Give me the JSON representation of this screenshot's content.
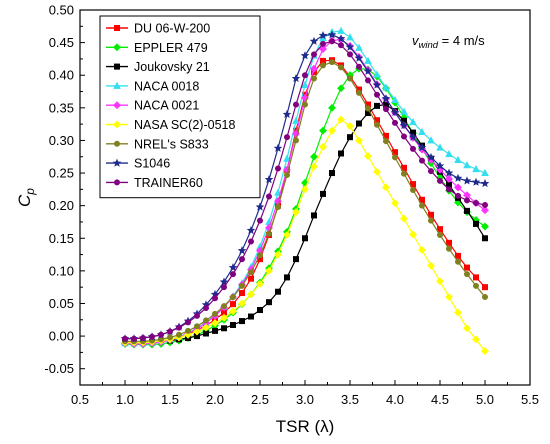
{
  "chart_data": {
    "type": "line",
    "xlabel": "TSR (λ)",
    "ylabel": "Cp",
    "xlim": [
      0.5,
      5.5
    ],
    "ylim": [
      -0.075,
      0.5
    ],
    "xticks": [
      "0.5",
      "1.0",
      "1.5",
      "2.0",
      "2.5",
      "3.0",
      "3.5",
      "4.0",
      "4.5",
      "5.0",
      "5.5"
    ],
    "yticks": [
      "-0.05",
      "0.00",
      "0.05",
      "0.10",
      "0.15",
      "0.20",
      "0.25",
      "0.30",
      "0.35",
      "0.40",
      "0.45",
      "0.50"
    ],
    "grid": false,
    "legend_position": "top-left",
    "annotation": {
      "var": "v",
      "sub": "wind",
      "text": " = 4 m/s"
    },
    "series": [
      {
        "name": "DU 06-W-200",
        "color": "#ff0000",
        "marker": "square",
        "x": [
          1.0,
          1.1,
          1.2,
          1.3,
          1.4,
          1.5,
          1.6,
          1.7,
          1.8,
          1.9,
          2.0,
          2.1,
          2.2,
          2.3,
          2.4,
          2.5,
          2.6,
          2.7,
          2.8,
          2.9,
          3.0,
          3.1,
          3.2,
          3.3,
          3.4,
          3.5,
          3.6,
          3.7,
          3.8,
          3.9,
          4.0,
          4.1,
          4.2,
          4.3,
          4.4,
          4.5,
          4.6,
          4.7,
          4.8,
          4.9,
          5.0
        ],
        "y": [
          -0.009,
          -0.01,
          -0.01,
          -0.01,
          -0.009,
          -0.006,
          -0.002,
          0.003,
          0.009,
          0.016,
          0.025,
          0.036,
          0.049,
          0.066,
          0.088,
          0.118,
          0.155,
          0.2,
          0.255,
          0.315,
          0.37,
          0.405,
          0.422,
          0.423,
          0.415,
          0.398,
          0.378,
          0.355,
          0.331,
          0.307,
          0.282,
          0.258,
          0.233,
          0.209,
          0.186,
          0.164,
          0.143,
          0.123,
          0.105,
          0.09,
          0.075
        ]
      },
      {
        "name": "EPPLER 479",
        "color": "#00ee00",
        "marker": "diamond",
        "x": [
          1.0,
          1.1,
          1.2,
          1.3,
          1.4,
          1.5,
          1.6,
          1.7,
          1.8,
          1.9,
          2.0,
          2.1,
          2.2,
          2.3,
          2.4,
          2.5,
          2.6,
          2.7,
          2.8,
          2.9,
          3.0,
          3.1,
          3.2,
          3.3,
          3.4,
          3.5,
          3.6,
          3.7,
          3.8,
          3.9,
          4.0,
          4.1,
          4.2,
          4.3,
          4.4,
          4.5,
          4.6,
          4.7,
          4.8,
          4.9,
          5.0
        ],
        "y": [
          -0.012,
          -0.013,
          -0.013,
          -0.013,
          -0.012,
          -0.01,
          -0.007,
          -0.003,
          0.002,
          0.008,
          0.016,
          0.025,
          0.036,
          0.049,
          0.064,
          0.082,
          0.104,
          0.13,
          0.16,
          0.195,
          0.235,
          0.275,
          0.315,
          0.35,
          0.38,
          0.4,
          0.41,
          0.409,
          0.398,
          0.38,
          0.358,
          0.335,
          0.311,
          0.288,
          0.265,
          0.243,
          0.223,
          0.205,
          0.19,
          0.178,
          0.168
        ]
      },
      {
        "name": "Joukovsky 21",
        "color": "#000000",
        "marker": "square",
        "x": [
          1.0,
          1.1,
          1.2,
          1.3,
          1.4,
          1.5,
          1.6,
          1.7,
          1.8,
          1.9,
          2.0,
          2.1,
          2.2,
          2.3,
          2.4,
          2.5,
          2.6,
          2.7,
          2.8,
          2.9,
          3.0,
          3.1,
          3.2,
          3.3,
          3.4,
          3.5,
          3.6,
          3.7,
          3.8,
          3.9,
          4.0,
          4.1,
          4.2,
          4.3,
          4.4,
          4.5,
          4.6,
          4.7,
          4.8,
          4.9,
          5.0
        ],
        "y": [
          -0.01,
          -0.01,
          -0.01,
          -0.009,
          -0.008,
          -0.007,
          -0.005,
          -0.003,
          0.0,
          0.004,
          0.008,
          0.012,
          0.017,
          0.023,
          0.03,
          0.04,
          0.052,
          0.068,
          0.09,
          0.118,
          0.15,
          0.185,
          0.218,
          0.25,
          0.28,
          0.305,
          0.326,
          0.342,
          0.353,
          0.355,
          0.345,
          0.33,
          0.312,
          0.292,
          0.272,
          0.252,
          0.232,
          0.212,
          0.192,
          0.172,
          0.15
        ]
      },
      {
        "name": "NACA 0018",
        "color": "#33dfef",
        "marker": "triangle",
        "x": [
          1.0,
          1.1,
          1.2,
          1.3,
          1.4,
          1.5,
          1.6,
          1.7,
          1.8,
          1.9,
          2.0,
          2.1,
          2.2,
          2.3,
          2.4,
          2.5,
          2.6,
          2.7,
          2.8,
          2.9,
          3.0,
          3.1,
          3.2,
          3.3,
          3.4,
          3.5,
          3.6,
          3.7,
          3.8,
          3.9,
          4.0,
          4.1,
          4.2,
          4.3,
          4.4,
          4.5,
          4.6,
          4.7,
          4.8,
          4.9,
          5.0
        ],
        "y": [
          -0.011,
          -0.011,
          -0.011,
          -0.01,
          -0.008,
          -0.005,
          -0.001,
          0.005,
          0.012,
          0.021,
          0.032,
          0.045,
          0.061,
          0.081,
          0.106,
          0.137,
          0.175,
          0.22,
          0.272,
          0.33,
          0.385,
          0.43,
          0.457,
          0.466,
          0.468,
          0.458,
          0.442,
          0.422,
          0.401,
          0.381,
          0.362,
          0.344,
          0.328,
          0.313,
          0.3,
          0.289,
          0.279,
          0.27,
          0.262,
          0.256,
          0.25
        ]
      },
      {
        "name": "NACA 0021",
        "color": "#ff33ff",
        "marker": "diamond",
        "x": [
          1.0,
          1.1,
          1.2,
          1.3,
          1.4,
          1.5,
          1.6,
          1.7,
          1.8,
          1.9,
          2.0,
          2.1,
          2.2,
          2.3,
          2.4,
          2.5,
          2.6,
          2.7,
          2.8,
          2.9,
          3.0,
          3.1,
          3.2,
          3.3,
          3.4,
          3.5,
          3.6,
          3.7,
          3.8,
          3.9,
          4.0,
          4.1,
          4.2,
          4.3,
          4.4,
          4.5,
          4.6,
          4.7,
          4.8,
          4.9,
          5.0
        ],
        "y": [
          -0.011,
          -0.012,
          -0.012,
          -0.011,
          -0.009,
          -0.006,
          -0.002,
          0.004,
          0.011,
          0.02,
          0.031,
          0.044,
          0.06,
          0.079,
          0.102,
          0.131,
          0.166,
          0.207,
          0.255,
          0.31,
          0.365,
          0.41,
          0.44,
          0.453,
          0.455,
          0.445,
          0.428,
          0.408,
          0.386,
          0.364,
          0.343,
          0.323,
          0.304,
          0.286,
          0.27,
          0.255,
          0.241,
          0.228,
          0.216,
          0.204,
          0.193
        ]
      },
      {
        "name": "NASA SC(2)-0518",
        "color": "#ffff00",
        "marker": "diamond",
        "x": [
          1.0,
          1.1,
          1.2,
          1.3,
          1.4,
          1.5,
          1.6,
          1.7,
          1.8,
          1.9,
          2.0,
          2.1,
          2.2,
          2.3,
          2.4,
          2.5,
          2.6,
          2.7,
          2.8,
          2.9,
          3.0,
          3.1,
          3.2,
          3.3,
          3.4,
          3.5,
          3.6,
          3.7,
          3.8,
          3.9,
          4.0,
          4.1,
          4.2,
          4.3,
          4.4,
          4.5,
          4.6,
          4.7,
          4.8,
          4.9,
          5.0
        ],
        "y": [
          -0.01,
          -0.01,
          -0.01,
          -0.009,
          -0.007,
          -0.005,
          -0.002,
          0.002,
          0.007,
          0.013,
          0.02,
          0.028,
          0.038,
          0.05,
          0.064,
          0.08,
          0.1,
          0.125,
          0.155,
          0.19,
          0.225,
          0.26,
          0.29,
          0.315,
          0.332,
          0.322,
          0.3,
          0.276,
          0.252,
          0.228,
          0.204,
          0.18,
          0.156,
          0.132,
          0.108,
          0.084,
          0.06,
          0.036,
          0.012,
          -0.005,
          -0.023
        ]
      },
      {
        "name": "NREL's S833",
        "color": "#808020",
        "marker": "circle",
        "x": [
          1.0,
          1.1,
          1.2,
          1.3,
          1.4,
          1.5,
          1.6,
          1.7,
          1.8,
          1.9,
          2.0,
          2.1,
          2.2,
          2.3,
          2.4,
          2.5,
          2.6,
          2.7,
          2.8,
          2.9,
          3.0,
          3.1,
          3.2,
          3.3,
          3.4,
          3.5,
          3.6,
          3.7,
          3.8,
          3.9,
          4.0,
          4.1,
          4.2,
          4.3,
          4.4,
          4.5,
          4.6,
          4.7,
          4.8,
          4.9,
          5.0
        ],
        "y": [
          -0.008,
          -0.008,
          -0.008,
          -0.007,
          -0.005,
          -0.002,
          0.002,
          0.008,
          0.015,
          0.024,
          0.034,
          0.046,
          0.06,
          0.077,
          0.098,
          0.124,
          0.157,
          0.198,
          0.247,
          0.3,
          0.355,
          0.395,
          0.415,
          0.42,
          0.412,
          0.395,
          0.373,
          0.349,
          0.324,
          0.299,
          0.274,
          0.249,
          0.224,
          0.2,
          0.177,
          0.155,
          0.134,
          0.114,
          0.095,
          0.077,
          0.06
        ]
      },
      {
        "name": "S1046",
        "color": "#1f2b8c",
        "marker": "star",
        "x": [
          1.0,
          1.1,
          1.2,
          1.3,
          1.4,
          1.5,
          1.6,
          1.7,
          1.8,
          1.9,
          2.0,
          2.1,
          2.2,
          2.3,
          2.4,
          2.5,
          2.6,
          2.7,
          2.8,
          2.9,
          3.0,
          3.1,
          3.2,
          3.3,
          3.4,
          3.5,
          3.6,
          3.7,
          3.8,
          3.9,
          4.0,
          4.1,
          4.2,
          4.3,
          4.4,
          4.5,
          4.6,
          4.7,
          4.8,
          4.9,
          5.0
        ],
        "y": [
          -0.004,
          -0.004,
          -0.003,
          -0.001,
          0.002,
          0.007,
          0.014,
          0.023,
          0.034,
          0.048,
          0.064,
          0.083,
          0.105,
          0.131,
          0.162,
          0.198,
          0.24,
          0.288,
          0.34,
          0.395,
          0.43,
          0.452,
          0.461,
          0.462,
          0.456,
          0.443,
          0.426,
          0.406,
          0.385,
          0.364,
          0.343,
          0.323,
          0.305,
          0.289,
          0.274,
          0.261,
          0.25,
          0.242,
          0.238,
          0.236,
          0.234
        ]
      },
      {
        "name": "TRAINER60",
        "color": "#800080",
        "marker": "circle",
        "x": [
          1.0,
          1.1,
          1.2,
          1.3,
          1.4,
          1.5,
          1.6,
          1.7,
          1.8,
          1.9,
          2.0,
          2.1,
          2.2,
          2.3,
          2.4,
          2.5,
          2.6,
          2.7,
          2.8,
          2.9,
          3.0,
          3.1,
          3.2,
          3.3,
          3.4,
          3.5,
          3.6,
          3.7,
          3.8,
          3.9,
          4.0,
          4.1,
          4.2,
          4.3,
          4.4,
          4.5,
          4.6,
          4.7,
          4.8,
          4.9,
          5.0
        ],
        "y": [
          -0.004,
          -0.004,
          -0.003,
          -0.001,
          0.002,
          0.007,
          0.013,
          0.021,
          0.031,
          0.043,
          0.058,
          0.075,
          0.095,
          0.118,
          0.145,
          0.177,
          0.214,
          0.257,
          0.305,
          0.355,
          0.4,
          0.432,
          0.448,
          0.452,
          0.446,
          0.432,
          0.413,
          0.392,
          0.37,
          0.348,
          0.327,
          0.306,
          0.287,
          0.269,
          0.253,
          0.238,
          0.225,
          0.215,
          0.208,
          0.204,
          0.201
        ]
      }
    ]
  }
}
